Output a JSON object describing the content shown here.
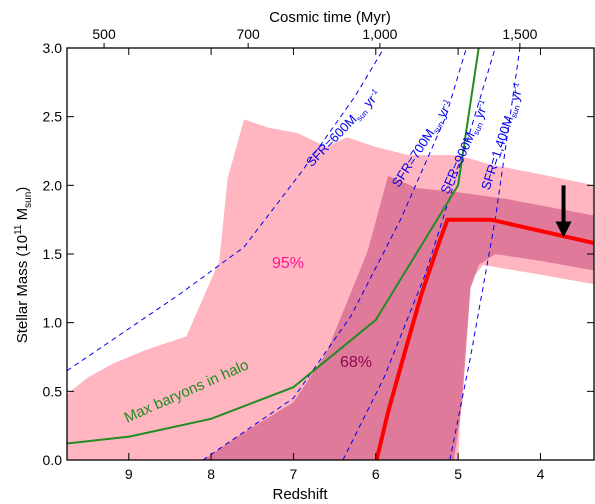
{
  "chart_data": {
    "type": "line",
    "xlabel": "Redshift",
    "ylabel_main": "Stellar Mass (10",
    "ylabel_sup": "11",
    "ylabel_rest": " M",
    "ylabel_sub": "sun",
    "ylabel_close": ")",
    "top_axis_label": "Cosmic time (Myr)",
    "xlim": [
      9.75,
      3.35
    ],
    "ylim": [
      0,
      3.0
    ],
    "x_ticks": [
      "9",
      "8",
      "7",
      "6",
      "5",
      "4"
    ],
    "x_tick_values": [
      9,
      8,
      7,
      6,
      5,
      4
    ],
    "y_ticks": [
      "0.0",
      "0.5",
      "1.0",
      "1.5",
      "2.0",
      "2.5",
      "3.0"
    ],
    "y_tick_values": [
      0,
      0.5,
      1.0,
      1.5,
      2.0,
      2.5,
      3.0
    ],
    "top_ticks": [
      {
        "label": "500",
        "z": 9.3
      },
      {
        "label": "700",
        "z": 7.55
      },
      {
        "label": "1,000",
        "z": 5.95
      },
      {
        "label": "1,500",
        "z": 4.25
      }
    ],
    "colors": {
      "band95": "#ffb6c1",
      "band68": "#db7093",
      "band68_opacity": 0.85,
      "stellar": "#ff0000",
      "baryons": "#228b22",
      "sfr": "#0000ee",
      "arrow": "#000000",
      "label95": "#ff1493",
      "label68": "#8b0a50"
    },
    "band_95": {
      "upper": [
        [
          9.75,
          0.48
        ],
        [
          9.5,
          0.6
        ],
        [
          9.2,
          0.7
        ],
        [
          8.8,
          0.8
        ],
        [
          8.3,
          0.9
        ],
        [
          7.9,
          1.45
        ],
        [
          7.8,
          2.05
        ],
        [
          7.6,
          2.48
        ],
        [
          7.3,
          2.42
        ],
        [
          6.95,
          2.38
        ],
        [
          6.6,
          2.28
        ],
        [
          6.35,
          2.35
        ],
        [
          6.0,
          2.28
        ],
        [
          5.6,
          2.22
        ],
        [
          5.0,
          2.22
        ],
        [
          4.6,
          2.15
        ],
        [
          4.0,
          2.08
        ],
        [
          3.35,
          2.0
        ]
      ],
      "lower": [
        [
          9.75,
          0
        ],
        [
          5.0,
          0
        ],
        [
          4.95,
          0.55
        ],
        [
          4.85,
          1.3
        ],
        [
          4.7,
          1.42
        ],
        [
          4.0,
          1.35
        ],
        [
          3.35,
          1.28
        ]
      ]
    },
    "band_68": {
      "upper": [
        [
          8.1,
          0
        ],
        [
          7.6,
          0.2
        ],
        [
          7.0,
          0.42
        ],
        [
          6.6,
          0.78
        ],
        [
          6.35,
          1.15
        ],
        [
          6.1,
          1.52
        ],
        [
          5.85,
          2.07
        ],
        [
          5.5,
          1.98
        ],
        [
          5.0,
          1.95
        ],
        [
          4.4,
          1.9
        ],
        [
          3.35,
          1.78
        ]
      ],
      "lower": [
        [
          5.05,
          0
        ],
        [
          4.95,
          0.42
        ],
        [
          4.85,
          1.25
        ],
        [
          4.75,
          1.42
        ],
        [
          4.55,
          1.5
        ],
        [
          4.0,
          1.45
        ],
        [
          3.35,
          1.38
        ]
      ]
    },
    "stellar_mass": {
      "points": [
        [
          5.99,
          0
        ],
        [
          5.85,
          0.35
        ],
        [
          5.65,
          0.78
        ],
        [
          5.45,
          1.2
        ],
        [
          5.25,
          1.55
        ],
        [
          5.13,
          1.75
        ],
        [
          4.75,
          1.75
        ],
        [
          4.6,
          1.75
        ],
        [
          3.35,
          1.58
        ]
      ]
    },
    "max_baryons": {
      "name": "Max baryons in halo",
      "points": [
        [
          9.75,
          0.12
        ],
        [
          9.0,
          0.17
        ],
        [
          8.0,
          0.3
        ],
        [
          7.0,
          0.53
        ],
        [
          6.0,
          1.02
        ],
        [
          5.0,
          2.0
        ],
        [
          4.75,
          3.0
        ]
      ]
    },
    "sfr_lines": [
      {
        "name": "SFR=600M",
        "sub": "sun",
        "unit": " yr",
        "sup": "-1",
        "points": [
          [
            9.75,
            0.65
          ],
          [
            8.4,
            1.2
          ],
          [
            7.6,
            1.55
          ],
          [
            6.9,
            2.1
          ],
          [
            6.25,
            2.65
          ],
          [
            5.9,
            3.0
          ]
        ]
      },
      {
        "name": "SFR=700M",
        "sub": "sun",
        "unit": " yr",
        "sup": "-1",
        "points": [
          [
            8.1,
            0
          ],
          [
            7.0,
            0.45
          ],
          [
            6.3,
            1.05
          ],
          [
            5.7,
            1.75
          ],
          [
            5.15,
            2.5
          ],
          [
            4.9,
            3.0
          ]
        ]
      },
      {
        "name": "SFR=900M",
        "sub": "sun",
        "unit": " yr",
        "sup": "-1",
        "points": [
          [
            6.4,
            0
          ],
          [
            5.9,
            0.6
          ],
          [
            5.4,
            1.35
          ],
          [
            4.95,
            2.2
          ],
          [
            4.55,
            3.0
          ]
        ]
      },
      {
        "name": "SFR=1,400M",
        "sub": "sun",
        "unit": " yr",
        "sup": "-1",
        "points": [
          [
            5.1,
            0
          ],
          [
            4.85,
            0.75
          ],
          [
            4.55,
            1.75
          ],
          [
            4.25,
            3.0
          ]
        ]
      }
    ],
    "annotations": {
      "label95": "95%",
      "label68": "68%",
      "arrow": {
        "x": 3.72,
        "y_from": 2.0,
        "y_to": 1.62
      }
    }
  }
}
